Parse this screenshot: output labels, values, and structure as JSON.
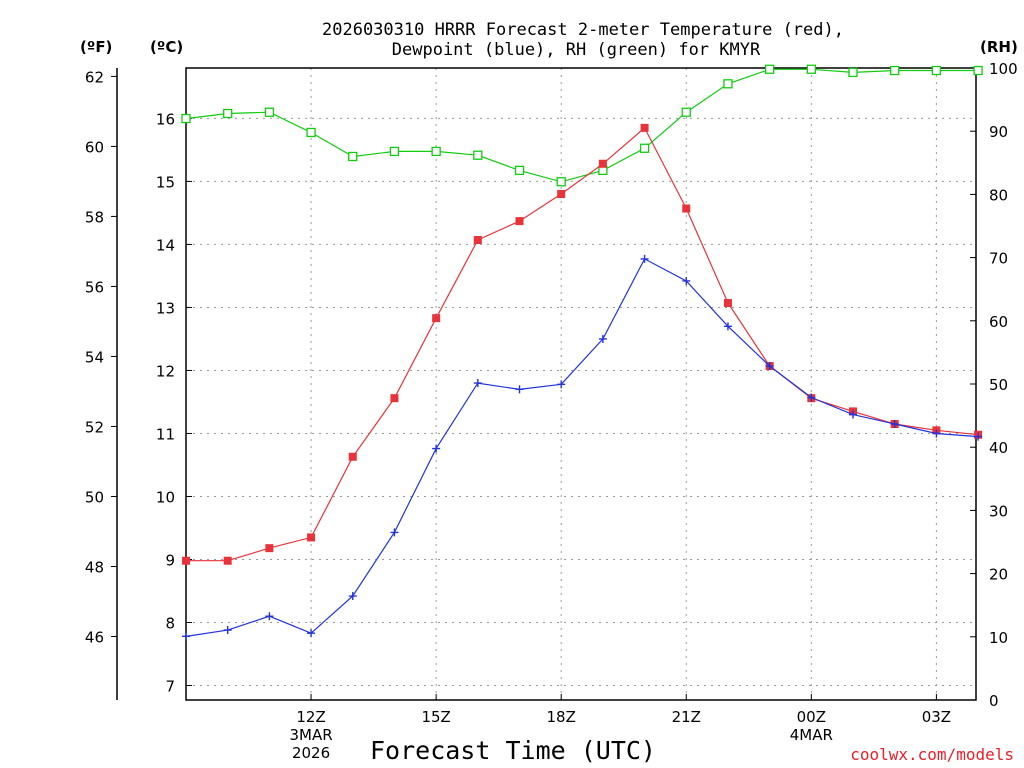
{
  "chart_data": {
    "type": "line",
    "title_line1": "2026030310 HRRR Forecast 2-meter Temperature (red),",
    "title_line2": "Dewpoint (blue), RH (green) for KMYR",
    "xlabel": "Forecast Time (UTC)",
    "credit": "coolwx.com/models",
    "unit_f": "(ºF)",
    "unit_c": "(ºC)",
    "unit_rh": "(RH)",
    "x_hours": [
      9,
      10,
      11,
      12,
      13,
      14,
      15,
      16,
      17,
      18,
      19,
      20,
      21,
      22,
      23,
      24,
      25,
      26,
      27,
      28
    ],
    "x_ticks": [
      {
        "hour": 12,
        "lines": [
          "12Z",
          "3MAR",
          "2026"
        ]
      },
      {
        "hour": 15,
        "lines": [
          "15Z"
        ]
      },
      {
        "hour": 18,
        "lines": [
          "18Z"
        ]
      },
      {
        "hour": 21,
        "lines": [
          "21Z"
        ]
      },
      {
        "hour": 24,
        "lines": [
          "00Z",
          "4MAR"
        ]
      },
      {
        "hour": 27,
        "lines": [
          "03Z"
        ]
      }
    ],
    "x_range": [
      9,
      27.95
    ],
    "celsius_range": [
      6.77,
      16.8
    ],
    "celsius_ticks": [
      "7",
      "8",
      "9",
      "10",
      "11",
      "12",
      "13",
      "14",
      "15",
      "16"
    ],
    "fahrenheit_ticks": [
      "46",
      "48",
      "50",
      "52",
      "54",
      "56",
      "58",
      "60",
      "62"
    ],
    "rh_range": [
      0,
      100
    ],
    "rh_ticks": [
      "0",
      "10",
      "20",
      "30",
      "40",
      "50",
      "60",
      "70",
      "80",
      "90",
      "100"
    ],
    "series": [
      {
        "name": "Temperature",
        "unit": "C",
        "color": "#e8333a",
        "marker": "filled-square",
        "values": [
          8.98,
          8.98,
          9.18,
          9.35,
          10.63,
          11.56,
          12.83,
          14.07,
          14.37,
          14.8,
          15.28,
          15.85,
          14.57,
          13.07,
          12.07,
          11.56,
          11.35,
          11.15,
          11.05,
          10.98
        ]
      },
      {
        "name": "Dewpoint",
        "unit": "C",
        "color": "#2233dd",
        "marker": "plus",
        "values": [
          7.78,
          7.88,
          8.1,
          7.83,
          8.42,
          9.43,
          10.76,
          11.8,
          11.7,
          11.78,
          12.5,
          13.77,
          13.42,
          12.7,
          12.07,
          11.57,
          11.3,
          11.15,
          11.0,
          10.95
        ]
      },
      {
        "name": "RH",
        "unit": "%",
        "color": "#11cc11",
        "marker": "open-square",
        "values": [
          92,
          92.8,
          93,
          89.8,
          86,
          86.8,
          86.8,
          86.2,
          83.8,
          82,
          83.8,
          87.3,
          93,
          97.5,
          99.8,
          99.8,
          99.3,
          99.6,
          99.6,
          99.6
        ]
      }
    ]
  }
}
